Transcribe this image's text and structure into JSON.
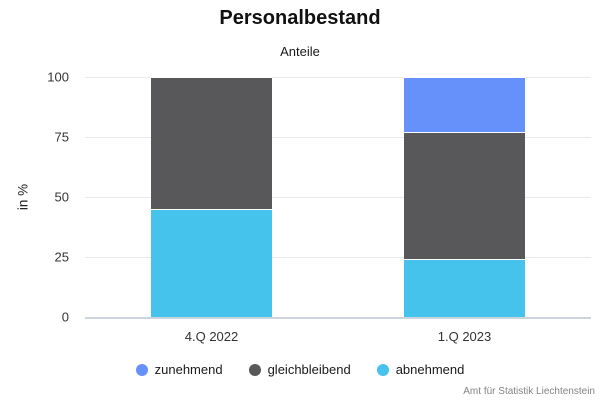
{
  "chart_data": {
    "type": "bar",
    "stacked": true,
    "title": "Personalbestand",
    "subtitle": "Anteile",
    "ylabel": "in %",
    "ylim": [
      0,
      100
    ],
    "yticks": [
      0,
      25,
      50,
      75,
      100
    ],
    "grid": true,
    "legend_position": "bottom",
    "categories": [
      "4.Q 2022",
      "1.Q 2023"
    ],
    "series": [
      {
        "name": "zunehmend",
        "color": "#6690fa",
        "values": [
          0,
          23
        ]
      },
      {
        "name": "gleichbleibend",
        "color": "#58585a",
        "values": [
          55,
          53
        ]
      },
      {
        "name": "abnehmend",
        "color": "#45c3ed",
        "values": [
          45,
          24
        ]
      }
    ],
    "attribution": "Amt für Statistik Liechtenstein"
  }
}
